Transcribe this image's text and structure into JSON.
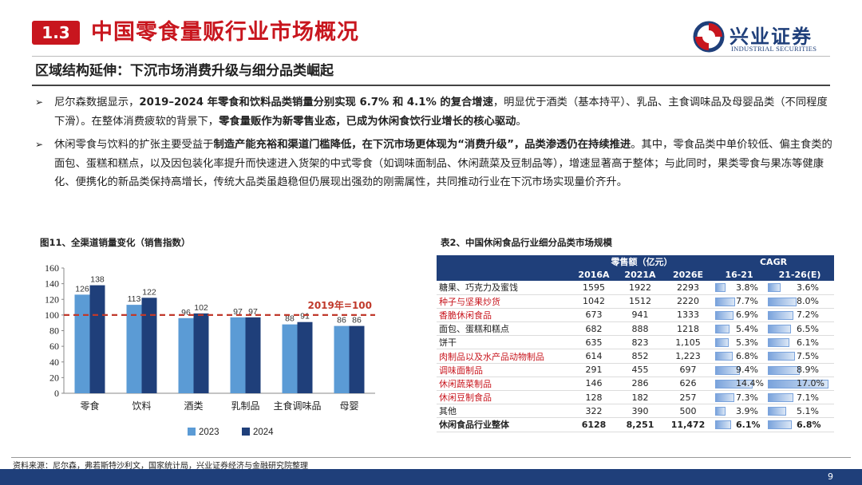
{
  "header": {
    "section_number": "1.3",
    "title": "中国零食量贩行业市场概况",
    "logo_cn": "兴业证券",
    "logo_en": "INDUSTRIAL SECURITIES"
  },
  "subtitle": "区域结构延伸：下沉市场消费升级与细分品类崛起",
  "bullets": {
    "b1": {
      "s1": "尼尔森数据显示，",
      "s2": "2019–2024 年零食和饮料品类销量分别实现 6.7% 和 4.1% 的复合增速",
      "s3": "，明显优于酒类（基本持平）、乳品、主食调味品及母婴品类（不同程度下滑）。在整体消费疲软的背景下，",
      "s4": "零食量贩作为新零售业态，已成为休闲食饮行业增长的核心驱动",
      "s5": "。"
    },
    "b2": {
      "s1": "休闲零食与饮料的扩张主要受益于",
      "s2": "制造产能充裕和渠道门槛降低，在下沉市场更体现为“消费升级”，品类渗透仍在持续推进",
      "s3": "。其中，零食品类中单价较低、偏主食类的面包、蛋糕和糕点，以及因包装化率提升而快速进入货架的中式零食（如调味面制品、休闲蔬菜及豆制品等），增速显著高于整体；与此同时，果类零食与果冻等健康化、便携化的新品类保持高增长，传统大品类虽趋稳但仍展现出强劲的刚需属性，共同推动行业在下沉市场实现量价齐升。"
    }
  },
  "figure_title": "图11、全渠道销量变化（销售指数）",
  "chart_data": {
    "type": "bar",
    "categories": [
      "零食",
      "饮料",
      "酒类",
      "乳制品",
      "主食调味品",
      "母婴"
    ],
    "series": [
      {
        "name": "2023",
        "values": [
          126,
          113,
          96,
          97,
          88,
          86
        ],
        "color": "#5b9bd5"
      },
      {
        "name": "2024",
        "values": [
          138,
          122,
          102,
          97,
          91,
          86
        ],
        "color": "#1f3f7a"
      }
    ],
    "value_labels": [
      [
        "126",
        "113",
        "96",
        "97",
        "88",
        "86"
      ],
      [
        "138",
        "122",
        "102",
        "97",
        "91",
        "86"
      ]
    ],
    "ylim": [
      0,
      160
    ],
    "yticks": [
      "0",
      "20",
      "40",
      "60",
      "80",
      "100",
      "120",
      "140",
      "160"
    ],
    "reference_line": {
      "value": 100,
      "label": "2019年=100",
      "color": "#c0392b"
    },
    "grid": false,
    "legend_position": "bottom"
  },
  "table_title": "表2、中国休闲食品行业细分品类市场规模",
  "table": {
    "group_headers": {
      "sales": "零售额（亿元）",
      "cagr": "CAGR"
    },
    "columns": [
      "2016A",
      "2021A",
      "2026E",
      "16-21",
      "21-26(E)"
    ],
    "rows": [
      {
        "name": "糖果、巧克力及蜜饯",
        "v1": "1595",
        "v2": "1922",
        "v3": "2293",
        "c1": "3.8%",
        "c2": "3.6%",
        "c1_value": 3.8,
        "c2_value": 3.6,
        "highlight": false
      },
      {
        "name": "种子与坚果炒货",
        "v1": "1042",
        "v2": "1512",
        "v3": "2220",
        "c1": "7.7%",
        "c2": "8.0%",
        "c1_value": 7.7,
        "c2_value": 8.0,
        "highlight": true
      },
      {
        "name": "香脆休闲食品",
        "v1": "673",
        "v2": "941",
        "v3": "1333",
        "c1": "6.9%",
        "c2": "7.2%",
        "c1_value": 6.9,
        "c2_value": 7.2,
        "highlight": true
      },
      {
        "name": "面包、蛋糕和糕点",
        "v1": "682",
        "v2": "888",
        "v3": "1218",
        "c1": "5.4%",
        "c2": "6.5%",
        "c1_value": 5.4,
        "c2_value": 6.5,
        "highlight": false
      },
      {
        "name": "饼干",
        "v1": "635",
        "v2": "823",
        "v3": "1,105",
        "c1": "5.3%",
        "c2": "6.1%",
        "c1_value": 5.3,
        "c2_value": 6.1,
        "highlight": false
      },
      {
        "name": "肉制品以及水产品动物制品",
        "v1": "614",
        "v2": "852",
        "v3": "1,223",
        "c1": "6.8%",
        "c2": "7.5%",
        "c1_value": 6.8,
        "c2_value": 7.5,
        "highlight": true
      },
      {
        "name": "调味面制品",
        "v1": "291",
        "v2": "455",
        "v3": "697",
        "c1": "9.4%",
        "c2": "8.9%",
        "c1_value": 9.4,
        "c2_value": 8.9,
        "highlight": true
      },
      {
        "name": "休闲蔬菜制品",
        "v1": "146",
        "v2": "286",
        "v3": "626",
        "c1": "14.4%",
        "c2": "17.0%",
        "c1_value": 14.4,
        "c2_value": 17.0,
        "highlight": true
      },
      {
        "name": "休闲豆制食品",
        "v1": "128",
        "v2": "182",
        "v3": "257",
        "c1": "7.3%",
        "c2": "7.1%",
        "c1_value": 7.3,
        "c2_value": 7.1,
        "highlight": true
      },
      {
        "name": "其他",
        "v1": "322",
        "v2": "390",
        "v3": "500",
        "c1": "3.9%",
        "c2": "5.1%",
        "c1_value": 3.9,
        "c2_value": 5.1,
        "highlight": false
      },
      {
        "name": "休闲食品行业整体",
        "v1": "6128",
        "v2": "8,251",
        "v3": "11,472",
        "c1": "6.1%",
        "c2": "6.8%",
        "c1_value": 6.1,
        "c2_value": 6.8,
        "highlight": false,
        "total": true
      }
    ]
  },
  "source": "资料来源：尼尔森，弗若斯特沙利文，国家统计局，兴业证券经济与金融研究院整理",
  "page_number": "9",
  "colors": {
    "accent_red": "#c8161e",
    "brand_navy": "#1f3f7a",
    "bar_2023": "#5b9bd5",
    "bar_2024": "#1f3f7a",
    "ref_line": "#c0392b"
  },
  "icons": {
    "bullet": "arrow-bullet-icon",
    "logo": "industrial-securities-logo-icon"
  }
}
